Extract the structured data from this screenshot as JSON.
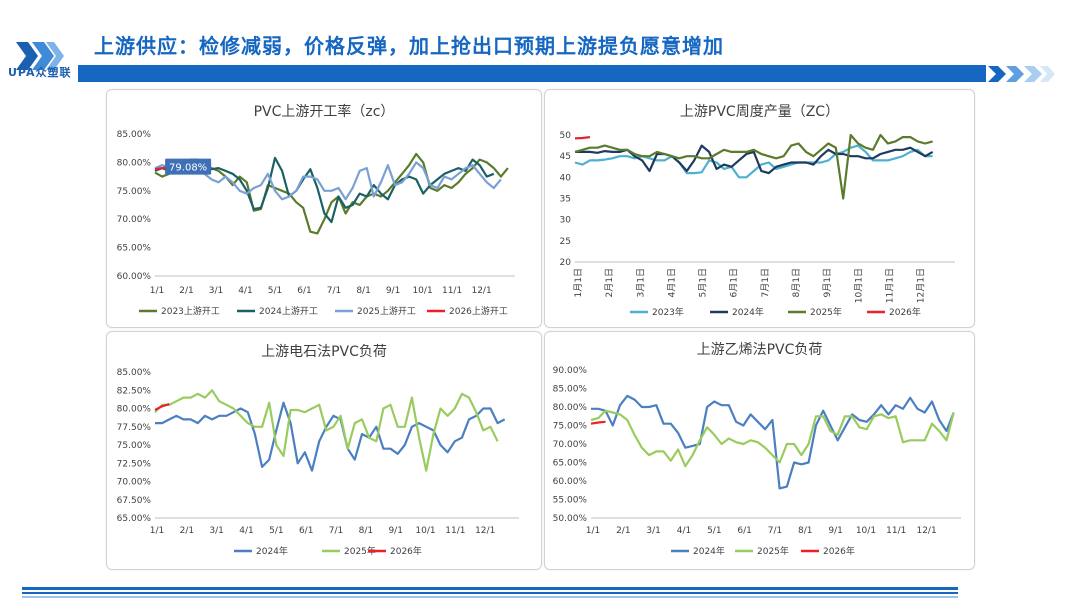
{
  "slide": {
    "title": "上游供应：检修减弱，价格反弹，加上抢出口预期上游提负愿意增加",
    "logo_text": "UPA众塑联",
    "colors": {
      "brand": "#1667c2",
      "light": "#9ec3ea"
    }
  },
  "chart_data": [
    {
      "id": "c1",
      "type": "line",
      "title": "PVC上游开工率（zc）",
      "ylim": [
        60,
        85
      ],
      "yticks": [
        85,
        80,
        75,
        70,
        65,
        60
      ],
      "ytick_labels": [
        "85.00%",
        "80.00%",
        "75.00%",
        "70.00%",
        "65.00%",
        "60.00%"
      ],
      "xticks": [
        "1/1",
        "2/1",
        "3/1",
        "4/1",
        "5/1",
        "6/1",
        "7/1",
        "8/1",
        "9/1",
        "10/1",
        "11/1",
        "12/1"
      ],
      "annotation": {
        "text": "79.08%",
        "series": "2025上游开工",
        "index": 2
      },
      "series": [
        {
          "name": "2023上游开工",
          "color": "#5b7b2c",
          "values": [
            78.2,
            77.5,
            78.0,
            79.5,
            79.8,
            80.5,
            80.5,
            79.6,
            79.0,
            78.5,
            77.5,
            76.0,
            77.5,
            76.5,
            71.5,
            71.8,
            76.0,
            75.5,
            75.0,
            74.5,
            73.0,
            72.0,
            67.8,
            67.5,
            70.0,
            73.0,
            74.0,
            71.0,
            73.0,
            72.5,
            74.0,
            74.5,
            74.0,
            75.0,
            76.5,
            78.0,
            79.5,
            81.5,
            80.0,
            75.5,
            75.0,
            76.0,
            75.5,
            76.5,
            78.0,
            79.0,
            80.5,
            80.0,
            79.0,
            77.5,
            79.0
          ]
        },
        {
          "name": "2024上游开工",
          "color": "#1a6166",
          "values": [
            78.5,
            79.0,
            78.5,
            78.8,
            79.0,
            79.5,
            80.0,
            79.5,
            78.8,
            79.0,
            78.5,
            78.0,
            77.0,
            75.0,
            71.8,
            72.0,
            75.5,
            80.8,
            78.5,
            74.0,
            75.0,
            77.0,
            78.8,
            75.5,
            71.0,
            69.5,
            74.0,
            72.0,
            72.5,
            74.5,
            74.0,
            76.0,
            74.5,
            73.5,
            76.0,
            77.0,
            77.5,
            77.0,
            74.5,
            76.0,
            77.0,
            78.0,
            78.5,
            79.0,
            78.5,
            80.5,
            79.5,
            77.5,
            78.0
          ]
        },
        {
          "name": "2025上游开工",
          "color": "#7aa0d4",
          "values": [
            79.0,
            79.5,
            79.08,
            80.0,
            80.0,
            79.5,
            78.5,
            78.0,
            77.0,
            76.5,
            77.5,
            76.5,
            75.0,
            74.5,
            75.5,
            76.0,
            78.0,
            75.0,
            73.5,
            74.0,
            75.0,
            77.5,
            77.5,
            77.0,
            75.0,
            75.0,
            75.5,
            73.5,
            75.5,
            78.5,
            79.0,
            74.0,
            76.5,
            79.5,
            76.0,
            76.5,
            78.0,
            80.0,
            79.0,
            76.0,
            75.5,
            77.5,
            77.0,
            78.0,
            79.0,
            79.5,
            78.0,
            76.5,
            75.5,
            77.0
          ]
        },
        {
          "name": "2026上游开工",
          "color": "#e8212a",
          "values": [
            78.8,
            79.0,
            79.2
          ]
        }
      ]
    },
    {
      "id": "c2",
      "type": "line",
      "title": "上游PVC周度产量（ZC）",
      "ylim": [
        20,
        50
      ],
      "yticks": [
        50,
        45,
        40,
        35,
        30,
        25,
        20
      ],
      "ytick_labels": [
        "50",
        "45",
        "40",
        "35",
        "30",
        "25",
        "20"
      ],
      "xticks": [
        "1月1日",
        "2月1日",
        "3月1日",
        "4月1日",
        "5月1日",
        "6月1日",
        "7月1日",
        "8月1日",
        "9月1日",
        "10月1日",
        "11月1日",
        "12月1日"
      ],
      "series": [
        {
          "name": "2023年",
          "color": "#4fb0cf",
          "values": [
            43.5,
            43.0,
            44.0,
            44.0,
            44.2,
            44.5,
            45.0,
            45.0,
            44.5,
            45.0,
            44.5,
            44.0,
            44.0,
            45.0,
            43.5,
            41.0,
            41.0,
            41.2,
            44.0,
            43.5,
            42.0,
            42.5,
            40.0,
            40.0,
            41.5,
            43.0,
            43.5,
            42.0,
            42.5,
            43.0,
            43.5,
            43.5,
            43.5,
            43.5,
            44.0,
            45.5,
            46.0,
            47.0,
            47.5,
            46.0,
            44.0,
            44.0,
            44.0,
            44.5,
            45.0,
            46.0,
            46.5,
            45.0,
            45.0
          ]
        },
        {
          "name": "2024年",
          "color": "#1f3a5f",
          "values": [
            46.0,
            46.0,
            46.0,
            45.8,
            46.2,
            46.0,
            46.0,
            46.5,
            45.0,
            44.0,
            41.5,
            45.5,
            45.5,
            45.0,
            43.5,
            41.5,
            44.0,
            47.5,
            46.0,
            42.0,
            43.0,
            42.5,
            44.0,
            45.5,
            46.0,
            41.5,
            41.0,
            42.5,
            43.0,
            43.5,
            43.5,
            43.5,
            43.0,
            45.0,
            46.5,
            45.5,
            45.5,
            45.0,
            45.0,
            44.5,
            44.5,
            45.5,
            46.0,
            46.5,
            46.5,
            47.0,
            46.0,
            45.0,
            46.0
          ]
        },
        {
          "name": "2025年",
          "color": "#5b7b2c",
          "values": [
            46.0,
            46.5,
            47.0,
            47.0,
            47.5,
            47.0,
            46.5,
            46.5,
            45.5,
            45.0,
            45.0,
            46.0,
            45.5,
            45.0,
            44.5,
            45.0,
            45.0,
            44.5,
            44.5,
            45.5,
            46.5,
            46.0,
            46.0,
            46.0,
            46.5,
            45.5,
            45.0,
            44.5,
            45.0,
            47.5,
            48.0,
            46.0,
            45.0,
            46.5,
            48.0,
            47.0,
            35.0,
            50.0,
            48.0,
            47.0,
            46.5,
            50.0,
            48.0,
            48.5,
            49.5,
            49.5,
            48.5,
            48.0,
            48.5
          ]
        },
        {
          "name": "2026年",
          "color": "#e8212a",
          "values": [
            49.2,
            49.3,
            49.5
          ]
        }
      ]
    },
    {
      "id": "c3",
      "type": "line",
      "title": "上游电石法PVC负荷",
      "ylim": [
        65,
        85
      ],
      "yticks": [
        85,
        82.5,
        80,
        77.5,
        75,
        72.5,
        70,
        67.5,
        65
      ],
      "ytick_labels": [
        "85.00%",
        "82.50%",
        "80.00%",
        "77.50%",
        "75.00%",
        "72.50%",
        "70.00%",
        "67.50%",
        "65.00%"
      ],
      "xticks": [
        "1/1",
        "2/1",
        "3/1",
        "4/1",
        "5/1",
        "6/1",
        "7/1",
        "8/1",
        "9/1",
        "10/1",
        "11/1",
        "12/1"
      ],
      "series": [
        {
          "name": "2024年",
          "color": "#4b7fc1",
          "values": [
            78.0,
            78.0,
            78.5,
            79.0,
            78.5,
            78.5,
            78.0,
            79.0,
            78.5,
            79.0,
            79.0,
            79.5,
            80.0,
            79.5,
            76.5,
            72.0,
            73.0,
            77.0,
            80.8,
            78.0,
            72.5,
            74.0,
            71.5,
            75.5,
            77.5,
            79.0,
            78.5,
            74.5,
            73.0,
            76.5,
            76.0,
            77.5,
            74.5,
            74.5,
            73.8,
            75.0,
            77.5,
            78.0,
            77.5,
            77.0,
            75.0,
            74.0,
            75.5,
            76.0,
            78.5,
            79.0,
            80.0,
            80.0,
            78.0,
            78.5
          ]
        },
        {
          "name": "2025年",
          "color": "#9acb5e",
          "values": [
            79.5,
            80.5,
            80.5,
            81.0,
            81.5,
            81.5,
            82.0,
            81.5,
            82.5,
            81.0,
            80.5,
            80.0,
            79.0,
            78.0,
            77.5,
            77.5,
            80.8,
            75.0,
            73.5,
            79.8,
            79.8,
            79.5,
            80.0,
            80.5,
            77.0,
            77.5,
            79.0,
            74.5,
            78.0,
            78.5,
            76.0,
            75.5,
            80.0,
            80.5,
            77.5,
            77.5,
            81.5,
            76.0,
            71.5,
            76.5,
            80.0,
            79.0,
            80.0,
            82.0,
            81.5,
            79.5,
            77.0,
            77.5,
            75.5
          ]
        },
        {
          "name": "2026年",
          "color": "#e8212a",
          "values": [
            79.8,
            80.3,
            80.6
          ]
        }
      ]
    },
    {
      "id": "c4",
      "type": "line",
      "title": "上游乙烯法PVC负荷",
      "ylim": [
        50,
        90
      ],
      "yticks": [
        90,
        85,
        80,
        75,
        70,
        65,
        60,
        55,
        50
      ],
      "ytick_labels": [
        "90.00%",
        "85.00%",
        "80.00%",
        "75.00%",
        "70.00%",
        "65.00%",
        "60.00%",
        "55.00%",
        "50.00%"
      ],
      "xticks": [
        "1/1",
        "2/1",
        "3/1",
        "4/1",
        "5/1",
        "6/1",
        "7/1",
        "8/1",
        "9/1",
        "10/1",
        "11/1",
        "12/1"
      ],
      "series": [
        {
          "name": "2024年",
          "color": "#4b7fc1",
          "values": [
            79.5,
            79.5,
            79.0,
            75.0,
            80.5,
            83.0,
            82.0,
            80.0,
            80.0,
            80.5,
            75.5,
            75.5,
            73.0,
            69.0,
            69.5,
            70.0,
            80.0,
            81.5,
            80.5,
            80.5,
            76.0,
            75.0,
            78.0,
            76.0,
            74.0,
            76.5,
            58.0,
            58.5,
            65.0,
            64.5,
            65.0,
            75.0,
            79.0,
            75.0,
            71.0,
            74.5,
            78.0,
            76.5,
            76.0,
            78.0,
            80.5,
            78.0,
            80.5,
            79.5,
            82.5,
            79.5,
            78.5,
            81.5,
            76.5,
            73.5,
            78.5
          ]
        },
        {
          "name": "2025年",
          "color": "#9acb5e",
          "values": [
            76.5,
            77.0,
            79.0,
            78.5,
            78.0,
            76.5,
            72.5,
            69.0,
            67.0,
            68.0,
            68.0,
            65.5,
            68.5,
            64.0,
            67.0,
            71.0,
            74.5,
            72.5,
            70.0,
            71.5,
            70.5,
            70.0,
            71.0,
            70.5,
            69.0,
            67.0,
            65.0,
            70.0,
            70.0,
            67.0,
            70.0,
            77.5,
            77.5,
            73.5,
            72.5,
            77.5,
            77.5,
            74.5,
            74.0,
            77.5,
            78.0,
            77.0,
            77.5,
            70.5,
            71.0,
            71.0,
            71.0,
            75.5,
            73.5,
            71.0,
            78.5
          ]
        },
        {
          "name": "2026年",
          "color": "#e8212a",
          "values": [
            75.5,
            75.8,
            76.0
          ]
        }
      ]
    }
  ]
}
